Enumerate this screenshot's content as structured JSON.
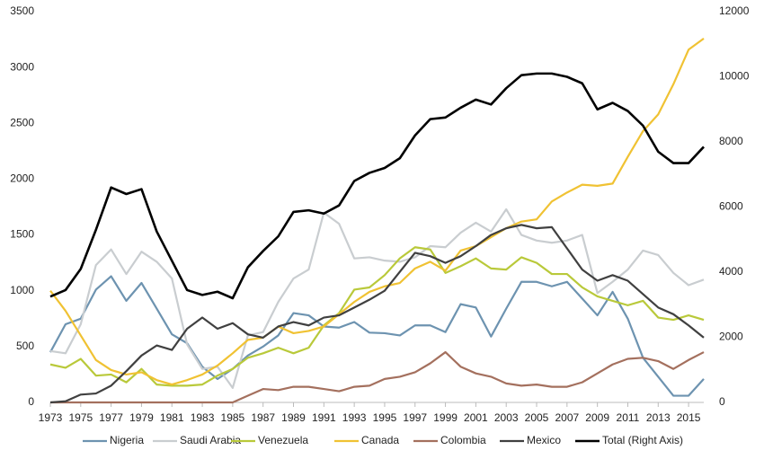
{
  "chart_data": {
    "type": "line",
    "x": [
      1973,
      1974,
      1975,
      1976,
      1977,
      1978,
      1979,
      1980,
      1981,
      1982,
      1983,
      1984,
      1985,
      1986,
      1987,
      1988,
      1989,
      1990,
      1991,
      1992,
      1993,
      1994,
      1995,
      1996,
      1997,
      1998,
      1999,
      2000,
      2001,
      2002,
      2003,
      2004,
      2005,
      2006,
      2007,
      2008,
      2009,
      2010,
      2011,
      2012,
      2013,
      2014,
      2015,
      2016
    ],
    "xlim": [
      1973,
      2016
    ],
    "xticks": [
      1973,
      1975,
      1977,
      1979,
      1981,
      1983,
      1985,
      1987,
      1989,
      1991,
      1993,
      1995,
      1997,
      1999,
      2001,
      2003,
      2005,
      2007,
      2009,
      2011,
      2013,
      2015
    ],
    "ylim": [
      0,
      3500
    ],
    "yticks": [
      0,
      500,
      1000,
      1500,
      2000,
      2500,
      3000,
      3500
    ],
    "y2lim": [
      0,
      12000
    ],
    "y2ticks": [
      0,
      2000,
      4000,
      6000,
      8000,
      10000,
      12000
    ],
    "grid": false,
    "legend": "bottom",
    "series": [
      {
        "name": "Nigeria",
        "color": "#6d93b0",
        "values": [
          450,
          700,
          750,
          1010,
          1130,
          910,
          1070,
          840,
          610,
          530,
          320,
          210,
          300,
          420,
          500,
          600,
          800,
          780,
          680,
          670,
          720,
          625,
          620,
          600,
          690,
          690,
          630,
          880,
          850,
          590,
          840,
          1080,
          1080,
          1040,
          1080,
          930,
          780,
          990,
          750,
          400,
          230,
          60,
          60,
          210
        ]
      },
      {
        "name": "Saudi Arabia",
        "color": "#c9cdd0",
        "values": [
          460,
          440,
          700,
          1230,
          1370,
          1150,
          1350,
          1260,
          1110,
          520,
          300,
          320,
          130,
          600,
          630,
          900,
          1110,
          1190,
          1700,
          1600,
          1290,
          1300,
          1270,
          1260,
          1300,
          1400,
          1390,
          1520,
          1610,
          1530,
          1730,
          1500,
          1450,
          1430,
          1450,
          1500,
          980,
          1080,
          1190,
          1360,
          1320,
          1160,
          1050,
          1100
        ]
      },
      {
        "name": "Venezuela",
        "color": "#b9c93a",
        "values": [
          340,
          310,
          390,
          240,
          250,
          180,
          300,
          160,
          150,
          150,
          160,
          240,
          300,
          400,
          440,
          490,
          440,
          490,
          690,
          800,
          1010,
          1030,
          1140,
          1290,
          1390,
          1370,
          1160,
          1220,
          1290,
          1200,
          1190,
          1300,
          1250,
          1150,
          1150,
          1030,
          950,
          910,
          870,
          910,
          760,
          740,
          780,
          740
        ]
      },
      {
        "name": "Canada",
        "color": "#f0c233",
        "values": [
          1000,
          820,
          600,
          380,
          290,
          250,
          270,
          200,
          160,
          200,
          250,
          330,
          440,
          560,
          580,
          680,
          620,
          640,
          680,
          790,
          900,
          990,
          1040,
          1070,
          1200,
          1260,
          1180,
          1360,
          1400,
          1480,
          1560,
          1620,
          1640,
          1800,
          1880,
          1950,
          1940,
          1960,
          2200,
          2430,
          2580,
          2850,
          3160,
          3260
        ]
      },
      {
        "name": "Colombia",
        "color": "#a4705e",
        "values": [
          0,
          0,
          0,
          0,
          0,
          0,
          0,
          0,
          0,
          0,
          0,
          0,
          0,
          60,
          120,
          110,
          140,
          140,
          120,
          100,
          140,
          150,
          210,
          230,
          270,
          350,
          450,
          320,
          260,
          230,
          170,
          150,
          160,
          140,
          140,
          180,
          260,
          340,
          390,
          400,
          370,
          300,
          380,
          450
        ]
      },
      {
        "name": "Mexico",
        "color": "#404040",
        "values": [
          0,
          10,
          70,
          80,
          150,
          280,
          420,
          510,
          470,
          660,
          760,
          660,
          710,
          610,
          580,
          680,
          720,
          690,
          760,
          780,
          850,
          920,
          1000,
          1170,
          1340,
          1310,
          1250,
          1310,
          1400,
          1500,
          1560,
          1590,
          1560,
          1570,
          1380,
          1190,
          1090,
          1140,
          1090,
          970,
          850,
          790,
          690,
          580
        ]
      },
      {
        "name": "Total (Right Axis)",
        "color": "#000000",
        "axis": "y2",
        "values": [
          3250,
          3450,
          4100,
          5300,
          6600,
          6400,
          6550,
          5250,
          4350,
          3450,
          3300,
          3400,
          3200,
          4150,
          4650,
          5100,
          5850,
          5900,
          5800,
          6050,
          6800,
          7050,
          7200,
          7500,
          8200,
          8700,
          8750,
          9050,
          9300,
          9150,
          9650,
          10050,
          10100,
          10100,
          10000,
          9800,
          9000,
          9200,
          8950,
          8500,
          7700,
          7350,
          7350,
          7850
        ]
      }
    ]
  }
}
